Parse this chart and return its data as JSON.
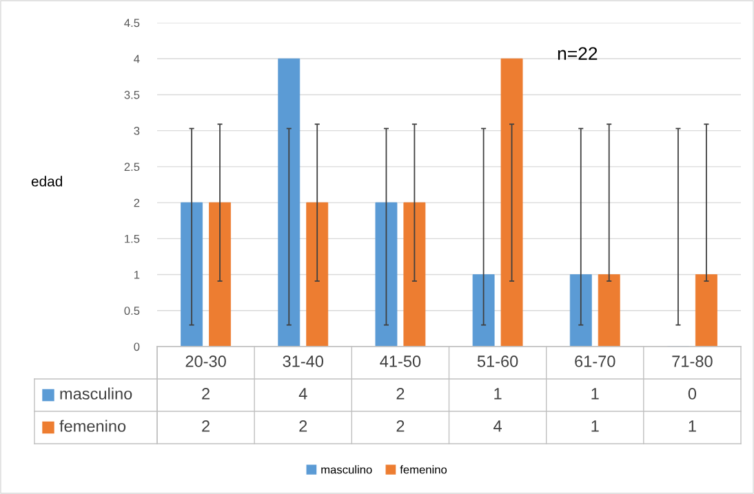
{
  "chart_data": {
    "type": "bar",
    "ylabel": "edad",
    "categories": [
      "20-30",
      "31-40",
      "41-50",
      "51-60",
      "61-70",
      "71-80"
    ],
    "series": [
      {
        "name": "masculino",
        "color": "#5b9bd5",
        "values": [
          2,
          4,
          2,
          1,
          1,
          0
        ],
        "errors": [
          [
            0.3,
            3.03
          ],
          [
            0.3,
            3.03
          ],
          [
            0.3,
            3.03
          ],
          [
            0.3,
            3.03
          ],
          [
            0.3,
            3.03
          ],
          [
            0.3,
            3.03
          ]
        ]
      },
      {
        "name": "femenino",
        "color": "#ed7d31",
        "values": [
          2,
          2,
          2,
          4,
          1,
          1
        ],
        "errors": [
          [
            0.91,
            3.09
          ],
          [
            0.91,
            3.09
          ],
          [
            0.91,
            3.09
          ],
          [
            0.91,
            3.09
          ],
          [
            0.91,
            3.09
          ],
          [
            0.91,
            3.09
          ]
        ]
      }
    ],
    "ylim": [
      0,
      4.5
    ],
    "yticks": [
      0,
      0.5,
      1,
      1.5,
      2,
      2.5,
      3,
      3.5,
      4,
      4.5
    ],
    "grid": "y",
    "legend": "bottom",
    "data_labels": true,
    "annotations": [
      "n=22"
    ]
  }
}
